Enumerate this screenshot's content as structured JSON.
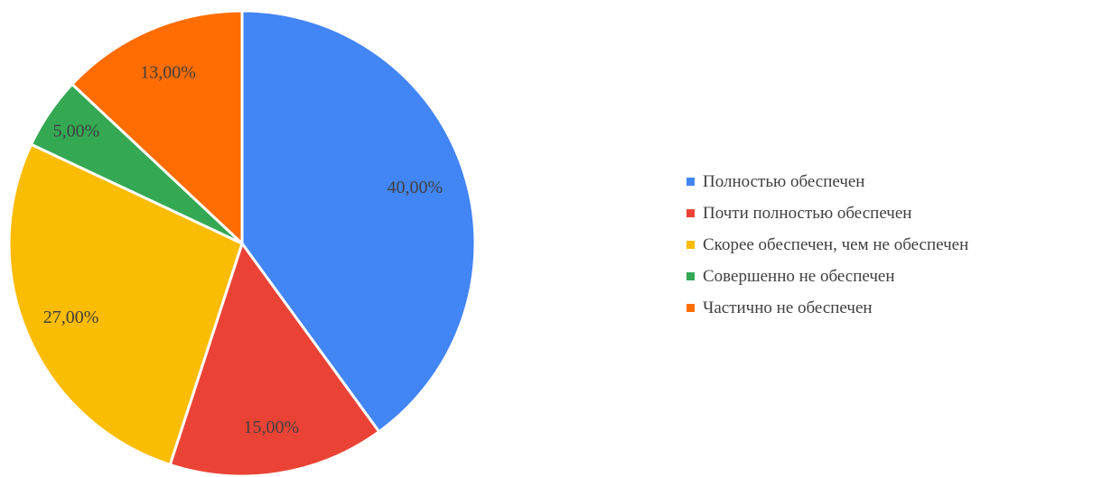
{
  "chart_data": {
    "type": "pie",
    "title": "",
    "categories": [
      "Полностью обеспечен",
      "Почти полностью обеспечен",
      "Скорее обеспечен, чем не обеспечен",
      "Совершенно не обеспечен",
      "Частично не обеспечен"
    ],
    "values": [
      40,
      15,
      27,
      5,
      13
    ],
    "data_labels": [
      "40,00%",
      "15,00%",
      "27,00%",
      "5,00%",
      "13,00%"
    ],
    "colors": [
      "#4285f4",
      "#ea4335",
      "#fbbc04",
      "#34a853",
      "#ff6d01"
    ],
    "legend_position": "right",
    "start_angle": "12 o'clock, clockwise"
  }
}
